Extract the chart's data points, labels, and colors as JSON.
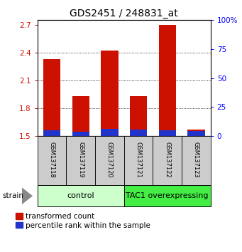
{
  "title": "GDS2451 / 248831_at",
  "samples": [
    "GSM137118",
    "GSM137119",
    "GSM137120",
    "GSM137121",
    "GSM137122",
    "GSM137123"
  ],
  "transformed_counts": [
    2.33,
    1.93,
    2.42,
    1.93,
    2.7,
    1.57
  ],
  "percentile_ranks": [
    5.0,
    4.0,
    6.5,
    5.5,
    5.0,
    4.5
  ],
  "bar_bottom": 1.5,
  "ylim_left": [
    1.5,
    2.75
  ],
  "ylim_right": [
    0,
    100
  ],
  "yticks_left": [
    1.5,
    1.8,
    2.1,
    2.4,
    2.7
  ],
  "yticks_right": [
    0,
    25,
    50,
    75,
    100
  ],
  "red_color": "#cc1100",
  "blue_color": "#2233cc",
  "groups": [
    {
      "label": "control",
      "start": 0,
      "end": 3,
      "color": "#ccffcc"
    },
    {
      "label": "TAC1 overexpressing",
      "start": 3,
      "end": 6,
      "color": "#44ee44"
    }
  ],
  "sample_row_color": "#cccccc",
  "bar_width": 0.6,
  "legend_red": "transformed count",
  "legend_blue": "percentile rank within the sample",
  "strain_label": "strain",
  "title_fontsize": 10,
  "tick_fontsize": 7.5,
  "legend_fontsize": 7.5,
  "sample_fontsize": 6.0,
  "group_fontsize": 8.0
}
